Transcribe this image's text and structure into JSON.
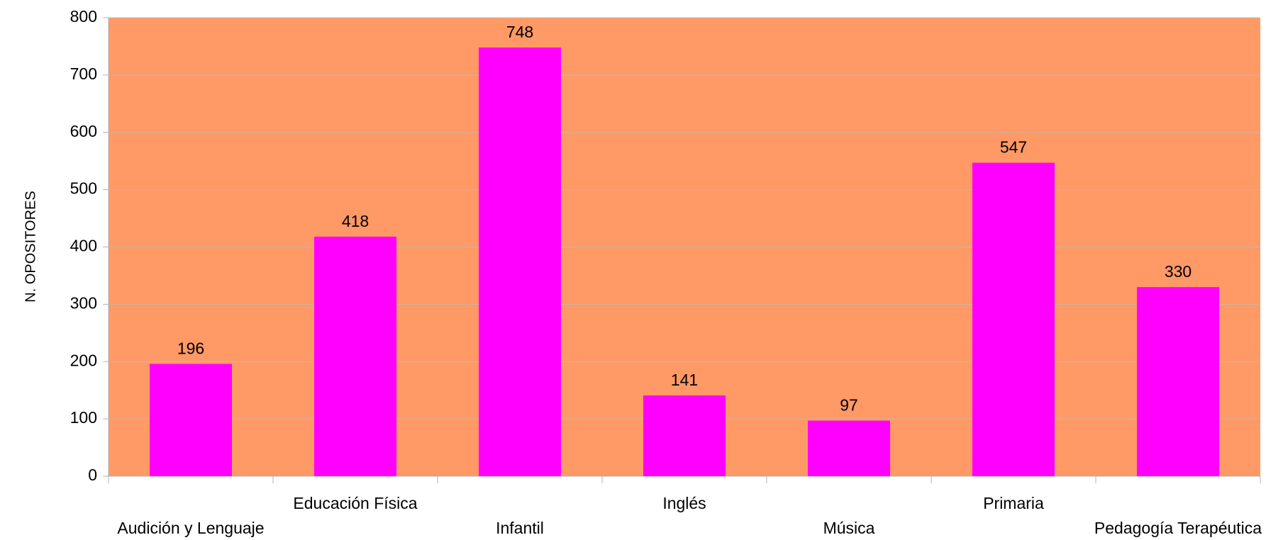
{
  "chart_data": {
    "type": "bar",
    "y_label": "N. OPOSITORES",
    "categories": [
      "Audición y Lenguaje",
      "Educación Física",
      "Infantil",
      "Inglés",
      "Música",
      "Primaria",
      "Pedagogía Terapéutica"
    ],
    "values": [
      196,
      418,
      748,
      141,
      97,
      547,
      330
    ],
    "color": "#ff00ff",
    "plot_background": "#ff9966",
    "ylim": [
      0,
      800
    ],
    "yticks": [
      0,
      100,
      200,
      300,
      400,
      500,
      600,
      700,
      800
    ],
    "grid": true
  }
}
